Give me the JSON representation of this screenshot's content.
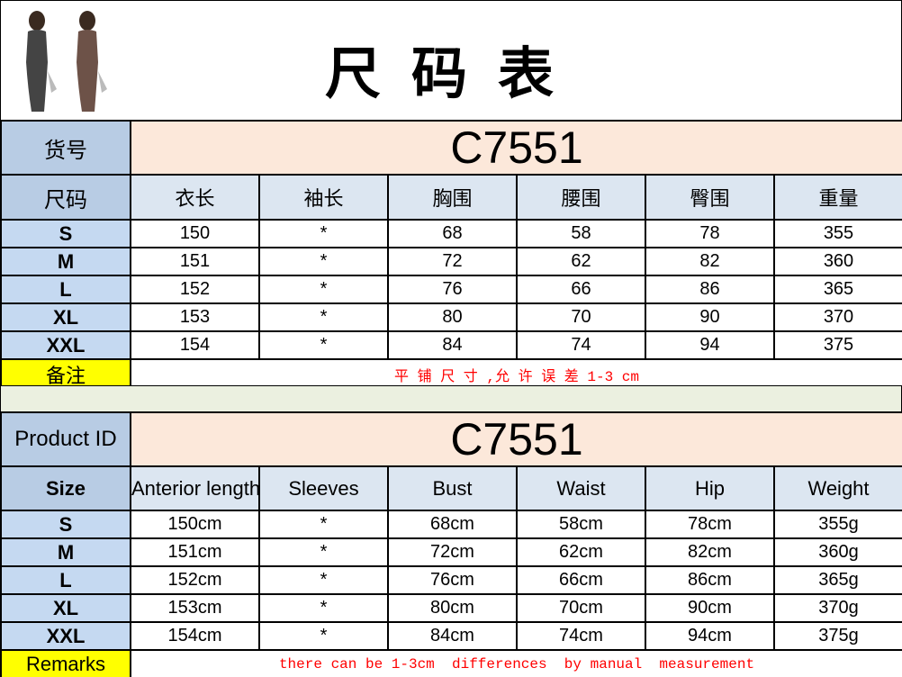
{
  "title": "尺码表",
  "cn": {
    "id_label": "货号",
    "id_value": "C7551",
    "headers": [
      "尺码",
      "衣长",
      "袖长",
      "胸围",
      "腰围",
      "臀围",
      "重量"
    ],
    "rows": [
      [
        "S",
        "150",
        "*",
        "68",
        "58",
        "78",
        "355"
      ],
      [
        "M",
        "151",
        "*",
        "72",
        "62",
        "82",
        "360"
      ],
      [
        "L",
        "152",
        "*",
        "76",
        "66",
        "86",
        "365"
      ],
      [
        "XL",
        "153",
        "*",
        "80",
        "70",
        "90",
        "370"
      ],
      [
        "XXL",
        "154",
        "*",
        "84",
        "74",
        "94",
        "375"
      ]
    ],
    "remark_label": "备注",
    "remark": "平 铺 尺 寸 ,允 许 误 差 1-3 cm"
  },
  "en": {
    "id_label": "Product ID",
    "id_value": "C7551",
    "headers": [
      "Size",
      "Anterior length",
      "Sleeves",
      "Bust",
      "Waist",
      "Hip",
      "Weight"
    ],
    "rows": [
      [
        "S",
        "150cm",
        "*",
        "68cm",
        "58cm",
        "78cm",
        "355g"
      ],
      [
        "M",
        "151cm",
        "*",
        "72cm",
        "62cm",
        "82cm",
        "360g"
      ],
      [
        "L",
        "152cm",
        "*",
        "76cm",
        "66cm",
        "86cm",
        "365g"
      ],
      [
        "XL",
        "153cm",
        "*",
        "80cm",
        "70cm",
        "90cm",
        "370g"
      ],
      [
        "XXL",
        "154cm",
        "*",
        "84cm",
        "74cm",
        "94cm",
        "375g"
      ]
    ],
    "remark_label": "Remarks",
    "remark": "there can be 1-3cm  differences  by manual  measurement"
  },
  "colors": {
    "header_col": "#b8cce4",
    "id_bg": "#fce8da",
    "col_header": "#dce6f1",
    "remark_label": "#ffff00",
    "remark_text": "#ff0000",
    "gap": "#ebf0e0"
  }
}
